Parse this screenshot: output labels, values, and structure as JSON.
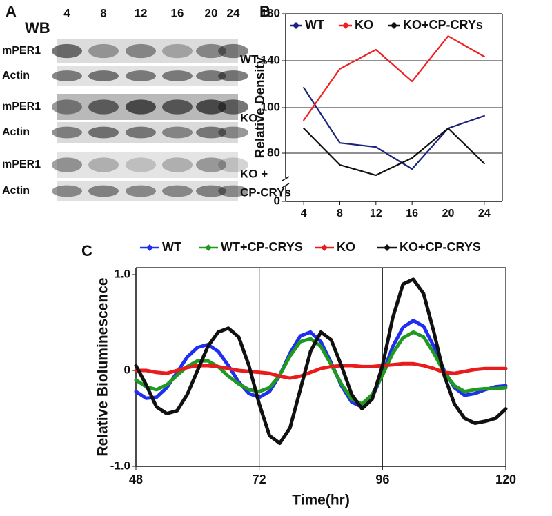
{
  "blot": {
    "panel_label": "A",
    "header": "WB",
    "lanes": [
      "4",
      "8",
      "12",
      "16",
      "20",
      "24"
    ],
    "rows": [
      "mPER1",
      "Actin",
      "mPER1",
      "Actin",
      "mPER1",
      "Actin"
    ],
    "groups": [
      [
        "WT"
      ],
      [
        "KO"
      ],
      [
        "KO +",
        "CP-CRYs"
      ]
    ]
  },
  "chart_data": [
    {
      "type": "line",
      "panel_label": "B",
      "y_label": "Relative Density",
      "categories": [
        "4",
        "8",
        "12",
        "16",
        "20",
        "24"
      ],
      "ylim": [
        0,
        180
      ],
      "yticks": [
        0,
        80,
        100,
        140,
        180
      ],
      "grid": true,
      "axis_break": true,
      "legend": "top",
      "series": [
        {
          "name": "WT",
          "color": "#1a237e",
          "values": [
            117,
            84.5,
            82.7,
            53.7,
            90.9,
            96.4
          ]
        },
        {
          "name": "KO",
          "color": "#f02020",
          "values": [
            94.5,
            133,
            149.4,
            122.4,
            161,
            143.5
          ]
        },
        {
          "name": "KO+CP-CRYs",
          "color": "#111111",
          "values": [
            90.9,
            60.6,
            43.4,
            72,
            90.9,
            62.9
          ]
        }
      ]
    },
    {
      "type": "line",
      "panel_label": "C",
      "x_label": "Time(hr)",
      "y_label": "Relative Bioluminescence",
      "x": [
        48,
        50,
        52,
        54,
        56,
        58,
        60,
        62,
        64,
        66,
        68,
        70,
        72,
        74,
        76,
        78,
        80,
        82,
        84,
        86,
        88,
        90,
        92,
        94,
        96,
        98,
        100,
        102,
        104,
        106,
        108,
        110,
        112,
        114,
        116,
        118,
        120
      ],
      "xlim": [
        48,
        120
      ],
      "xticks": [
        48,
        72,
        96,
        120
      ],
      "xgrid": true,
      "ylim": [
        -1,
        1
      ],
      "yticks": [
        {
          "value": -1,
          "label": "-1.0"
        },
        0,
        {
          "value": 1,
          "label": "1.0"
        }
      ],
      "legend": "top",
      "series": [
        {
          "name": "WT",
          "color": "#1f2ef0",
          "values": [
            -0.22,
            -0.29,
            -0.28,
            -0.18,
            -0.02,
            0.14,
            0.24,
            0.27,
            0.2,
            0.05,
            -0.12,
            -0.24,
            -0.28,
            -0.22,
            -0.05,
            0.18,
            0.36,
            0.4,
            0.3,
            0.08,
            -0.16,
            -0.33,
            -0.38,
            -0.28,
            -0.04,
            0.25,
            0.45,
            0.52,
            0.46,
            0.25,
            0.0,
            -0.18,
            -0.26,
            -0.24,
            -0.2,
            -0.17,
            -0.16
          ]
        },
        {
          "name": "WT+CP-CRYS",
          "color": "#1f9a1f",
          "values": [
            -0.1,
            -0.17,
            -0.2,
            -0.15,
            -0.05,
            0.04,
            0.1,
            0.1,
            0.04,
            -0.06,
            -0.14,
            -0.2,
            -0.22,
            -0.18,
            -0.05,
            0.15,
            0.3,
            0.33,
            0.25,
            0.06,
            -0.14,
            -0.3,
            -0.35,
            -0.25,
            -0.05,
            0.18,
            0.34,
            0.4,
            0.35,
            0.18,
            -0.02,
            -0.16,
            -0.22,
            -0.2,
            -0.19,
            -0.19,
            -0.18
          ]
        },
        {
          "name": "KO",
          "color": "#e81c1c",
          "values": [
            0.0,
            0.0,
            -0.02,
            -0.03,
            0.0,
            0.03,
            0.05,
            0.05,
            0.04,
            0.02,
            0.0,
            -0.01,
            -0.02,
            -0.03,
            -0.06,
            -0.08,
            -0.06,
            -0.02,
            0.02,
            0.04,
            0.05,
            0.05,
            0.04,
            0.04,
            0.05,
            0.06,
            0.07,
            0.07,
            0.05,
            0.02,
            -0.02,
            -0.03,
            -0.01,
            0.01,
            0.02,
            0.02,
            0.02
          ]
        },
        {
          "name": "KO+CP-CRYS",
          "color": "#111111",
          "values": [
            0.05,
            -0.15,
            -0.38,
            -0.45,
            -0.42,
            -0.25,
            0.0,
            0.25,
            0.4,
            0.44,
            0.35,
            0.05,
            -0.35,
            -0.68,
            -0.76,
            -0.6,
            -0.2,
            0.2,
            0.4,
            0.32,
            0.05,
            -0.25,
            -0.4,
            -0.3,
            0.05,
            0.55,
            0.9,
            0.95,
            0.8,
            0.4,
            -0.05,
            -0.35,
            -0.5,
            -0.55,
            -0.53,
            -0.5,
            -0.4
          ]
        }
      ]
    }
  ]
}
